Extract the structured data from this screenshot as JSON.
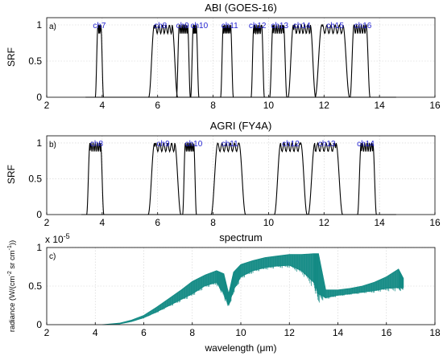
{
  "chart_data": [
    {
      "type": "line",
      "title": "ABI (GOES-16)",
      "panel_label": "a)",
      "ylabel": "SRF",
      "xlim": [
        2,
        16
      ],
      "ylim": [
        0,
        1.1
      ],
      "xticks": [
        "2",
        "4",
        "6",
        "8",
        "10",
        "12",
        "14",
        "16"
      ],
      "yticks": [
        "0",
        "0.5",
        "1"
      ],
      "grid": true,
      "color": "#000000",
      "channels": [
        {
          "name": "ch7",
          "center": 3.9,
          "width": 0.2,
          "label_x": 3.9
        },
        {
          "name": "ch8",
          "center": 6.2,
          "width": 0.84,
          "label_x": 6.1
        },
        {
          "name": "ch9",
          "center": 6.93,
          "width": 0.4,
          "label_x": 6.9
        },
        {
          "name": "ch10",
          "center": 7.34,
          "width": 0.2,
          "label_x": 7.5
        },
        {
          "name": "ch11",
          "center": 8.5,
          "width": 0.36,
          "label_x": 8.6
        },
        {
          "name": "ch12",
          "center": 9.61,
          "width": 0.38,
          "label_x": 9.6
        },
        {
          "name": "ch13",
          "center": 10.35,
          "width": 0.5,
          "label_x": 10.4
        },
        {
          "name": "ch14",
          "center": 11.2,
          "width": 0.8,
          "label_x": 11.2
        },
        {
          "name": "ch15",
          "center": 12.3,
          "width": 1.0,
          "label_x": 12.4
        },
        {
          "name": "ch16",
          "center": 13.3,
          "width": 0.58,
          "label_x": 13.4
        }
      ]
    },
    {
      "type": "line",
      "title": "AGRI (FY4A)",
      "panel_label": "b)",
      "ylabel": "SRF",
      "xlim": [
        2,
        16
      ],
      "ylim": [
        0,
        1.1
      ],
      "xticks": [
        "2",
        "4",
        "6",
        "8",
        "10",
        "12",
        "14",
        "16"
      ],
      "yticks": [
        "0",
        "0.5",
        "1"
      ],
      "grid": true,
      "color": "#000000",
      "channels": [
        {
          "name": "ch8",
          "center": 3.75,
          "width": 0.5,
          "label_x": 3.8
        },
        {
          "name": "ch9",
          "center": 6.25,
          "width": 0.95,
          "label_x": 6.2
        },
        {
          "name": "ch10",
          "center": 7.15,
          "width": 0.4,
          "label_x": 7.3
        },
        {
          "name": "ch11",
          "center": 8.55,
          "width": 1.0,
          "label_x": 8.6
        },
        {
          "name": "ch12",
          "center": 10.8,
          "width": 0.95,
          "label_x": 10.8
        },
        {
          "name": "ch13",
          "center": 12.05,
          "width": 1.0,
          "label_x": 12.1
        },
        {
          "name": "ch14",
          "center": 13.55,
          "width": 0.55,
          "label_x": 13.5
        }
      ]
    },
    {
      "type": "line",
      "title": "spectrum",
      "panel_label": "c)",
      "ylabel": "radiance (W/(cm^-2 sr cm^-1))",
      "ylabel_parts": {
        "a": "radiance (W/(cm",
        "b": "-2",
        "c": " sr cm",
        "d": "-1",
        "e": "))"
      },
      "xlabel": "wavelength (μm)",
      "exponent_label": {
        "base": "x 10",
        "exp": "-5"
      },
      "xlim": [
        2,
        18
      ],
      "ylim": [
        0,
        1
      ],
      "xticks": [
        "2",
        "4",
        "6",
        "8",
        "10",
        "12",
        "14",
        "16",
        "18"
      ],
      "yticks": [
        "0",
        "0.5",
        "1"
      ],
      "grid": true,
      "color": "#128a84",
      "x": [
        4.3,
        5,
        5.5,
        6,
        6.5,
        7,
        7.5,
        8,
        8.5,
        9,
        9.3,
        9.5,
        9.7,
        10,
        10.5,
        11,
        11.5,
        12,
        12.5,
        13,
        13.2,
        13.5,
        14,
        14.5,
        15,
        15.5,
        16,
        16.5,
        16.7
      ],
      "y": [
        0.0,
        0.02,
        0.06,
        0.12,
        0.22,
        0.33,
        0.44,
        0.56,
        0.64,
        0.7,
        0.66,
        0.4,
        0.68,
        0.78,
        0.83,
        0.87,
        0.89,
        0.91,
        0.91,
        0.92,
        0.92,
        0.45,
        0.45,
        0.47,
        0.5,
        0.55,
        0.62,
        0.72,
        0.6
      ],
      "y_lower": [
        0.0,
        0.01,
        0.04,
        0.09,
        0.16,
        0.24,
        0.32,
        0.4,
        0.5,
        0.55,
        0.4,
        0.25,
        0.45,
        0.62,
        0.7,
        0.74,
        0.76,
        0.77,
        0.7,
        0.55,
        0.4,
        0.35,
        0.38,
        0.4,
        0.42,
        0.44,
        0.47,
        0.48,
        0.48
      ]
    }
  ]
}
